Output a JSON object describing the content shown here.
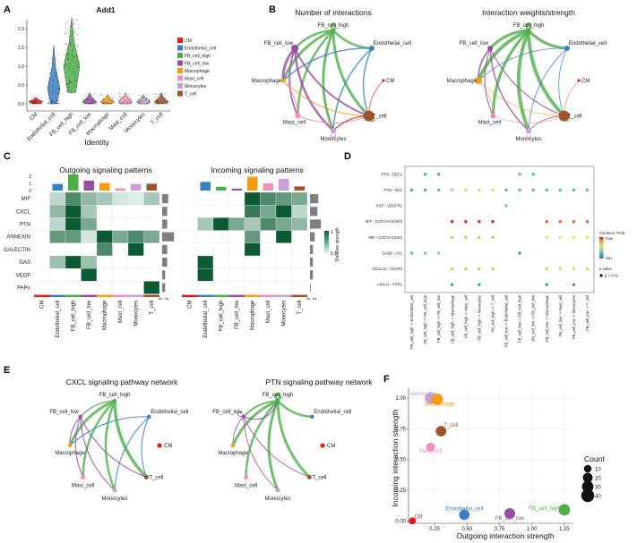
{
  "panels": {
    "a": {
      "letter": "A",
      "title": "Add1",
      "ylabel": "",
      "xlabel": "Identity",
      "ytick_labels": [
        "0.0",
        "0.5",
        "1.0",
        "1.5",
        "2.0"
      ],
      "legend": [
        "CM",
        "Endothelial_cell",
        "FB_cell_high",
        "FB_cell_low",
        "Macrophage",
        "Mast_cell",
        "Monocytes",
        "T_cell"
      ]
    },
    "b": {
      "letter": "B",
      "left_title": "Number of interactions",
      "right_title": "Interaction weights/strength"
    },
    "c": {
      "letter": "C",
      "left_title": "Outgoing signaling patterns",
      "right_title": "Incoming signaling patterns",
      "bar_tick_labels": [
        "0",
        "1",
        "2"
      ],
      "side_tick_labels": [
        "0",
        "2"
      ],
      "legend_title": "Relative strength",
      "legend_max": "1",
      "legend_min": "0.1"
    },
    "d": {
      "letter": "D",
      "legend_title": "Commun. Prob.",
      "legend_max": "max",
      "legend_min": "min",
      "pvalue_title": "p-value",
      "pvalue_item": "p < 0.01"
    },
    "e": {
      "letter": "E",
      "left_title": "CXCL signaling pathway network",
      "right_title": "PTN signaling pathway network"
    },
    "f": {
      "letter": "F",
      "xlabel": "Outgoing interaction strength",
      "ylabel": "Incoming interaction strength",
      "legend_title": "Count",
      "legend_items": [
        "10",
        "20",
        "30",
        "40"
      ]
    }
  },
  "cell_types": [
    "CM",
    "Endothelial_cell",
    "FB_cell_high",
    "FB_cell_low",
    "Macrophage",
    "Mast_cell",
    "Monocytes",
    "T_cell"
  ],
  "cell_colors": {
    "CM": "#e41a1c",
    "Endothelial_cell": "#3a7fc1",
    "FB_cell_high": "#4daf4a",
    "FB_cell_low": "#984ea3",
    "Macrophage": "#f39c12",
    "Mast_cell": "#f08fc0",
    "Monocytes": "#c79fd8",
    "T_cell": "#a0522d"
  },
  "heatmap": {
    "pathways": [
      "MIF",
      "CXCL",
      "PTN",
      "ANNEXIN",
      "GALECTIN",
      "GAS",
      "VEGF",
      "PARs"
    ],
    "columns": [
      "CM",
      "Endothelial_cell",
      "FB_cell_high",
      "FB_cell_low",
      "Macrophage",
      "Mast_cell",
      "Monocytes",
      "T_cell"
    ],
    "outgoing": [
      [
        0,
        0.2,
        0.7,
        0.4,
        0.3,
        0.1,
        0.05,
        0.3
      ],
      [
        0,
        0.4,
        1.0,
        0.3,
        0,
        0,
        0,
        0
      ],
      [
        0,
        0.2,
        1.0,
        0.5,
        0,
        0,
        0,
        0
      ],
      [
        0,
        0.6,
        0.6,
        0.1,
        1.0,
        0.5,
        0.7,
        0.5
      ],
      [
        0,
        0,
        0,
        0,
        0.7,
        0,
        1.0,
        0
      ],
      [
        0,
        0.35,
        1.0,
        0.35,
        0,
        0,
        0,
        0
      ],
      [
        0,
        0,
        0,
        1.0,
        0,
        0,
        0,
        0
      ],
      [
        0,
        0,
        0,
        0,
        0,
        0,
        0,
        1.0
      ]
    ],
    "incoming": [
      [
        0,
        0,
        0,
        0,
        1.0,
        0.7,
        0.6,
        0.5
      ],
      [
        0,
        0,
        0,
        0,
        0.8,
        0.5,
        1.0,
        0.2
      ],
      [
        0,
        0.3,
        1.0,
        0.5,
        0.3,
        0.7,
        0.5,
        0.4
      ],
      [
        0,
        0,
        0,
        0,
        0.6,
        0,
        1.0,
        0
      ],
      [
        0,
        0,
        0,
        0,
        1.0,
        0,
        0,
        0
      ],
      [
        0,
        1.0,
        0,
        0,
        0,
        0,
        0,
        0
      ],
      [
        0,
        1.0,
        0,
        0,
        0,
        0,
        0,
        0
      ],
      [
        0,
        0,
        0,
        0,
        0,
        0,
        0,
        0
      ]
    ]
  },
  "dotplot": {
    "rows": [
      "PTN - SDC2",
      "PTN - NCL",
      "PGF - VEGFR1",
      "MIF - (CD74+CXCR4)",
      "MIF - (CD74+CD44)",
      "GAS6 - AXL",
      "CXCL12 - CXCR4",
      "ANXA1 - FPR1"
    ],
    "columns": [
      "FB_cell_high -> Endothelial_cell",
      "FB_cell_high -> FB_cell_high",
      "FB_cell_high -> FB_cell_low",
      "FB_cell_high -> Macrophage",
      "FB_cell_high -> Mast_cell",
      "FB_cell_high -> Monocytes",
      "FB_cell_high -> T_cell",
      "FB_cell_low -> Endothelial_cell",
      "FB_cell_low -> FB_cell_high",
      "FB_cell_low -> FB_cell_low",
      "FB_cell_low -> Macrophage",
      "FB_cell_low -> Mast_cell",
      "FB_cell_low -> Monocytes",
      "FB_cell_low -> T_cell"
    ],
    "points": [
      [
        0,
        1,
        0.15
      ],
      [
        0,
        2,
        0.15
      ],
      [
        0,
        8,
        0.2
      ],
      [
        0,
        9,
        0.2
      ],
      [
        1,
        0,
        0.15
      ],
      [
        1,
        1,
        0.18
      ],
      [
        1,
        2,
        0.2
      ],
      [
        1,
        3,
        0.35
      ],
      [
        1,
        4,
        0.45
      ],
      [
        1,
        5,
        0.45
      ],
      [
        1,
        6,
        0.5
      ],
      [
        1,
        7,
        0.2
      ],
      [
        1,
        8,
        0.2
      ],
      [
        1,
        9,
        0.2
      ],
      [
        1,
        10,
        0.2
      ],
      [
        1,
        11,
        0.2
      ],
      [
        1,
        12,
        0.2
      ],
      [
        1,
        13,
        0.2
      ],
      [
        2,
        7,
        0.3
      ],
      [
        3,
        3,
        0.95
      ],
      [
        3,
        4,
        0.95
      ],
      [
        3,
        5,
        0.95
      ],
      [
        3,
        6,
        0.95
      ],
      [
        3,
        10,
        0.85
      ],
      [
        3,
        11,
        0.85
      ],
      [
        3,
        12,
        0.85
      ],
      [
        3,
        13,
        0.85
      ],
      [
        4,
        3,
        0.65
      ],
      [
        4,
        4,
        0.65
      ],
      [
        4,
        5,
        0.65
      ],
      [
        4,
        6,
        0.65
      ],
      [
        4,
        10,
        0.5
      ],
      [
        4,
        11,
        0.5
      ],
      [
        4,
        12,
        0.5
      ],
      [
        4,
        13,
        0.5
      ],
      [
        5,
        0,
        0.2
      ],
      [
        5,
        1,
        0.3
      ],
      [
        5,
        2,
        0.3
      ],
      [
        5,
        8,
        0.1
      ],
      [
        6,
        3,
        0.65
      ],
      [
        6,
        4,
        0.65
      ],
      [
        6,
        5,
        0.65
      ],
      [
        6,
        6,
        0.65
      ],
      [
        6,
        10,
        0.45
      ],
      [
        6,
        11,
        0.45
      ],
      [
        6,
        12,
        0.45
      ],
      [
        6,
        13,
        0.45
      ],
      [
        7,
        3,
        0.1
      ],
      [
        7,
        5,
        0.1
      ],
      [
        7,
        10,
        0.1
      ],
      [
        7,
        12,
        0.1
      ]
    ]
  },
  "chart_data": {
    "type": "scatter",
    "title": "",
    "xlabel": "Outgoing interaction strength",
    "ylabel": "Incoming interaction strength",
    "xlim": [
      0.05,
      1.32
    ],
    "ylim": [
      -0.02,
      1.08
    ],
    "x_ticks": [
      0.25,
      0.5,
      0.75,
      1.0,
      1.25
    ],
    "x_tick_labels": [
      "0.25",
      "0.50",
      "0.75",
      "1.00",
      "1.25"
    ],
    "y_ticks": [
      0,
      0.25,
      0.5,
      0.75,
      1.0
    ],
    "y_tick_labels": [
      "0.00",
      "0.25",
      "0.50",
      "0.75",
      "1.00"
    ],
    "grid": true,
    "legend": "right",
    "points": [
      {
        "label": "CM",
        "x": 0.08,
        "y": 0.0,
        "count": 8,
        "color": "#e41a1c"
      },
      {
        "label": "Endothelial_cell",
        "x": 0.48,
        "y": 0.05,
        "count": 24,
        "color": "#3a7fc1"
      },
      {
        "label": "FB_cell_low",
        "x": 0.83,
        "y": 0.06,
        "count": 26,
        "color": "#984ea3"
      },
      {
        "label": "FB_cell_high",
        "x": 1.25,
        "y": 0.09,
        "count": 30,
        "color": "#4daf4a"
      },
      {
        "label": "Monocytes",
        "x": 0.22,
        "y": 1.0,
        "count": 32,
        "color": "#c79fd8"
      },
      {
        "label": "Macrophage",
        "x": 0.27,
        "y": 0.99,
        "count": 30,
        "color": "#f39c12"
      },
      {
        "label": "T_cell",
        "x": 0.3,
        "y": 0.73,
        "count": 24,
        "color": "#a0522d"
      },
      {
        "label": "Mast_cell",
        "x": 0.22,
        "y": 0.6,
        "count": 16,
        "color": "#f08fc0"
      }
    ]
  }
}
